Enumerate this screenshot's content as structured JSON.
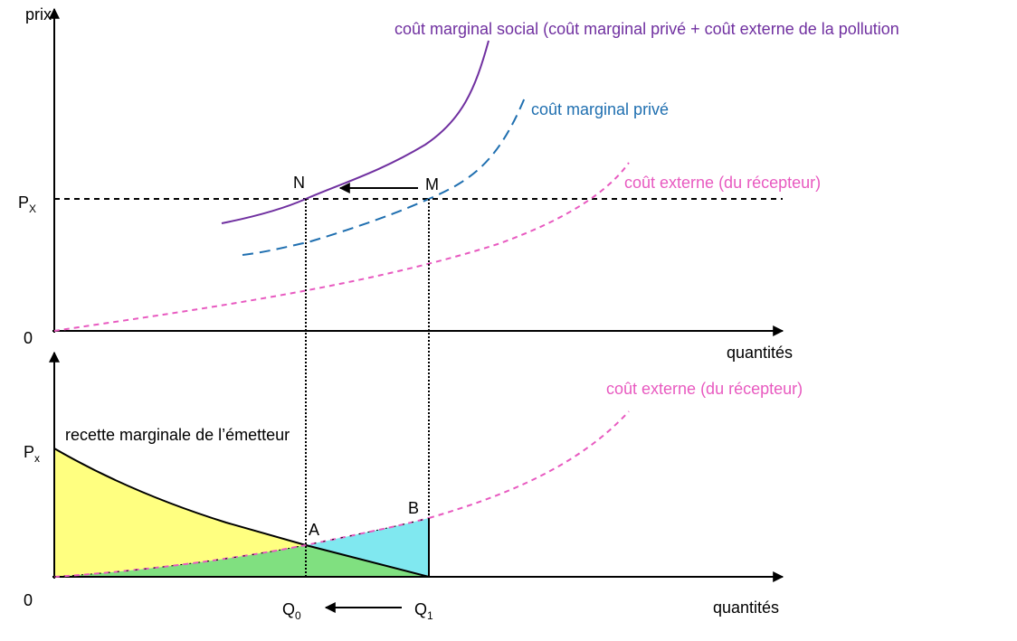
{
  "top": {
    "y_axis_label": "prix",
    "origin": "0",
    "price_label": {
      "main": "P",
      "sub": "X"
    },
    "x_axis_label": "quantités",
    "social_cost_label": "coût marginal social (coût marginal privé + coût externe de la pollution",
    "private_cost_label": "coût marginal privé",
    "external_cost_label": "coût externe (du récepteur)",
    "point_n": "N",
    "point_m": "M"
  },
  "bottom": {
    "origin": "0",
    "price_label": {
      "main": "P",
      "sub": "x"
    },
    "x_axis_label": "quantités",
    "external_cost_label": "coût externe (du récepteur)",
    "revenue_label": "recette marginale de l’émetteur",
    "point_a": "A",
    "point_b": "B",
    "q0": {
      "main": "Q",
      "sub": "0"
    },
    "q1": {
      "main": "Q",
      "sub": "1"
    }
  }
}
